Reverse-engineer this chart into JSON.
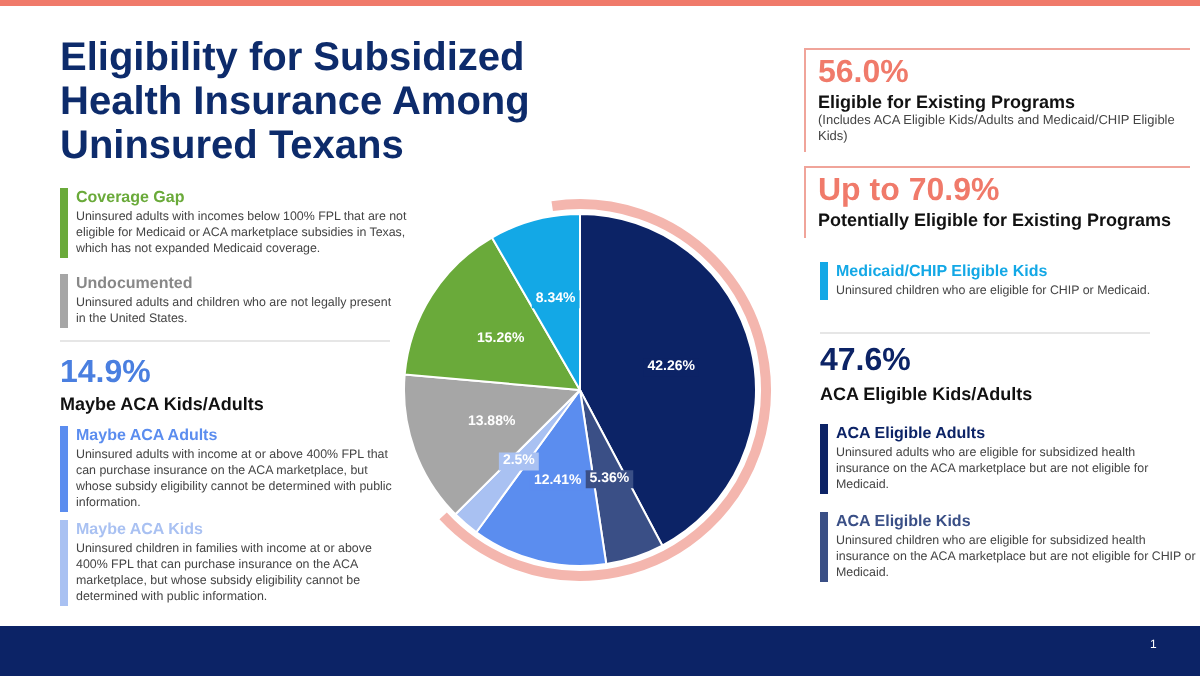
{
  "chart_data": {
    "type": "pie",
    "title": "Eligibility for Subsidized Health Insurance Among Uninsured Texans",
    "categories": [
      "ACA Eligible Adults",
      "ACA Eligible Kids",
      "Maybe ACA Adults",
      "Maybe ACA Kids",
      "Undocumented",
      "Coverage Gap",
      "Medicaid/CHIP Eligible Kids"
    ],
    "values": [
      42.26,
      5.36,
      12.41,
      2.5,
      13.88,
      15.26,
      8.34
    ],
    "value_labels": [
      "42.26%",
      "5.36%",
      "12.41%",
      "2.5%",
      "13.88%",
      "15.26%",
      "8.34%"
    ],
    "colors": [
      "#0c2366",
      "#3a4f86",
      "#5b8def",
      "#a9c1f2",
      "#a6a6a6",
      "#6aaa3a",
      "#13a8e6"
    ],
    "legend": "top left",
    "annotations": [
      "56.0%",
      "Eligible for Existing Programs",
      "(Includes ACA Eligible Kids/Adults and Medicaid/CHIP Eligible Kids)",
      "Up to 70.9%",
      "Potentially Eligible for Existing Programs",
      "14.9%",
      "Maybe ACA Kids/Adults",
      "47.6%",
      "ACA Eligible Kids/Adults",
      "Uninsured adults who are eligible for subsidized health insurance on the ACA marketplace but are not eligible for Medicaid.",
      "Uninsured children who are eligible for subsidized health insurance on the ACA marketplace but are not eligible for CHIP or Medicaid.",
      "Uninsured adults with income at or above 400% FPL that can purchase insurance on the ACA marketplace, but whose subsidy eligibility cannot be determined with public information.",
      "Uninsured children in families with income at or above 400% FPL that can purchase insurance on the ACA marketplace, but whose subsidy eligibility cannot be determined with public information.",
      "Uninsured adults and children who are not legally present in the United States.",
      "Uninsured adults with incomes below 100% FPL that are not eligible for Medicaid or ACA marketplace subsidies in Texas, which has not expanded Medicaid coverage.",
      "Uninsured children who are eligible for CHIP or Medicaid.",
      "1"
    ]
  }
}
